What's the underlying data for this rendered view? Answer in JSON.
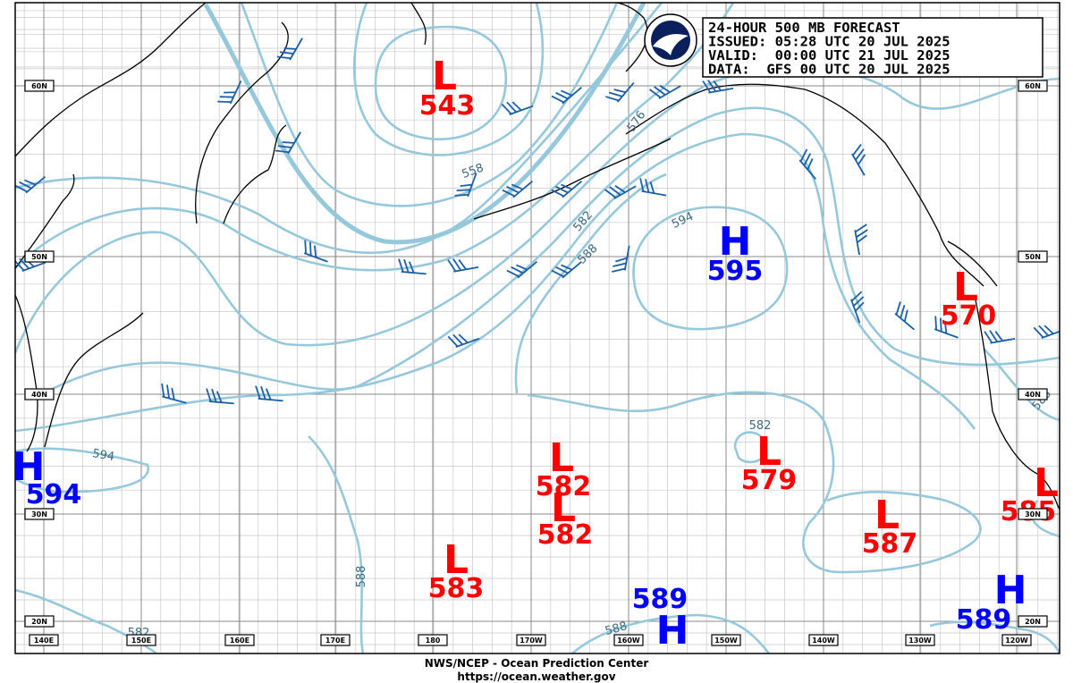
{
  "title_box": {
    "lines": [
      "24-HOUR 500 MB FORECAST",
      "ISSUED: 05:28 UTC 20 JUL 2025",
      "VALID:  00:00 UTC 21 JUL 2025",
      "DATA:  GFS 00 UTC 20 JUL 2025"
    ]
  },
  "centers": [
    {
      "letter": "L",
      "value": 543
    },
    {
      "letter": "H",
      "value": 595
    },
    {
      "letter": "L",
      "value": 570
    },
    {
      "letter": "H",
      "value": 594
    },
    {
      "letter": "L",
      "value": 582
    },
    {
      "letter": "L",
      "value": 582
    },
    {
      "letter": "L",
      "value": 579
    },
    {
      "letter": "L",
      "value": 583
    },
    {
      "letter": "L",
      "value": 587
    },
    {
      "letter": "L",
      "value": 585
    },
    {
      "letter": "H",
      "value": 589
    },
    {
      "letter": "H",
      "value": 589
    }
  ],
  "contour_labels": [
    558,
    576,
    582,
    588,
    594,
    594,
    582,
    588,
    588,
    588,
    582
  ],
  "lat_labels": [
    "60N",
    "50N",
    "40N",
    "30N",
    "20N"
  ],
  "lon_labels": [
    "140E",
    "150E",
    "160E",
    "170E",
    "180",
    "170W",
    "160W",
    "150W",
    "140W",
    "130W",
    "120W"
  ],
  "footer": {
    "line1": "NWS/NCEP - Ocean Prediction Center",
    "line2": "https://ocean.weather.gov"
  }
}
